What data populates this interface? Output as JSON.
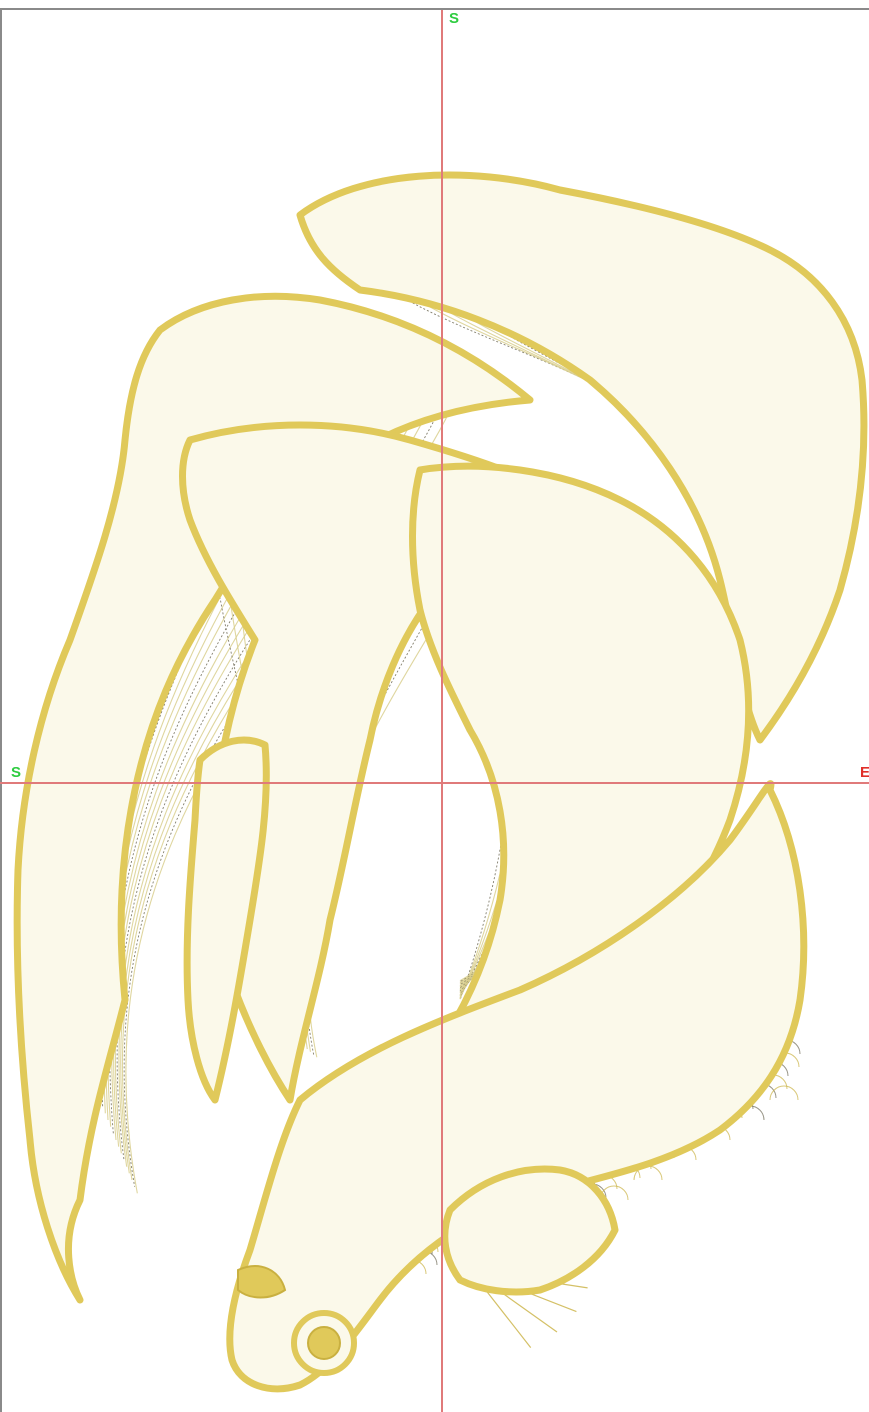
{
  "colors": {
    "background": "#ffffff",
    "frame": "#8a8a8a",
    "axis": "#e07a7a",
    "start_label": "#2ecc40",
    "end_label": "#e0302a",
    "outline": "#e0c95a",
    "outline_dark": "#c9b040",
    "thread": "#d9cf8e",
    "thread_dark": "#6e6a55",
    "fill": "#fbf9ea"
  },
  "labels": {
    "top": "S",
    "left": "S",
    "right": "E"
  },
  "design": {
    "icon": "betta-fish-icon"
  }
}
